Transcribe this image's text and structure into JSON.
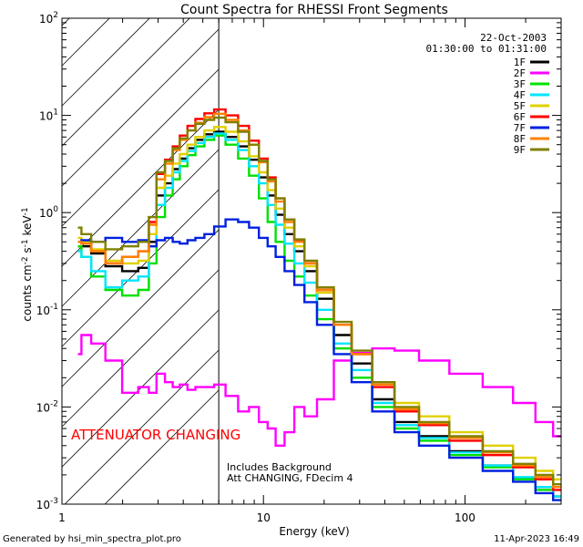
{
  "chart_data": {
    "type": "line",
    "title": "Count Spectra for RHESSI Front Segments",
    "xlabel": "Energy (keV)",
    "ylabel": "counts cm⁻² s⁻¹ keV⁻¹",
    "xscale": "log",
    "yscale": "log",
    "xlim": [
      1,
      300
    ],
    "ylim": [
      0.001,
      100
    ],
    "x_ticks": [
      {
        "value": 1,
        "label": "1"
      },
      {
        "value": 10,
        "label": "10"
      },
      {
        "value": 100,
        "label": "100"
      }
    ],
    "y_ticks": [
      {
        "value": 0.001,
        "base": "10",
        "exp": "-3"
      },
      {
        "value": 0.01,
        "base": "10",
        "exp": "-2"
      },
      {
        "value": 0.1,
        "base": "10",
        "exp": "-1"
      },
      {
        "value": 1,
        "base": "10",
        "exp": "0"
      },
      {
        "value": 10,
        "base": "10",
        "exp": "1"
      },
      {
        "value": 100,
        "base": "10",
        "exp": "2"
      }
    ],
    "date": "22-Oct-2003",
    "time_range": "01:30:00 to 01:31:00",
    "attenuator_label": "ATTENUATOR CHANGING",
    "attenuator_region": {
      "from_kev": 1,
      "to_kev": 6
    },
    "notes": [
      "Includes Background",
      "Att CHANGING, FDecim 4"
    ],
    "series": [
      {
        "name": "1F",
        "color": "#000000",
        "energy": [
          1.2,
          1.3,
          1.5,
          1.8,
          2.2,
          2.6,
          2.8,
          3.1,
          3.4,
          3.7,
          4.0,
          4.4,
          4.8,
          5.4,
          6.0,
          7.0,
          8.0,
          9.0,
          10.0,
          11.0,
          12.0,
          13.5,
          15.0,
          17.0,
          20.0,
          25.0,
          30.0,
          40.0,
          50.0,
          70.0,
          100.0,
          150.0,
          200.0,
          250.0,
          300.0
        ],
        "counts": [
          0.45,
          0.45,
          0.38,
          0.28,
          0.25,
          0.27,
          0.5,
          1.5,
          2.0,
          2.8,
          3.6,
          4.6,
          5.6,
          6.4,
          6.8,
          6.0,
          4.8,
          3.5,
          2.3,
          1.5,
          0.95,
          0.6,
          0.4,
          0.25,
          0.13,
          0.055,
          0.028,
          0.012,
          0.007,
          0.005,
          0.0035,
          0.0025,
          0.0018,
          0.0015,
          0.0012
        ]
      },
      {
        "name": "2F",
        "color": "#ff00ff",
        "energy": [
          1.2,
          1.3,
          1.5,
          1.8,
          2.2,
          2.6,
          2.8,
          3.1,
          3.4,
          3.7,
          4.0,
          4.4,
          4.8,
          5.4,
          6.0,
          7.0,
          8.0,
          9.0,
          10.0,
          11.0,
          12.0,
          13.5,
          15.0,
          17.0,
          20.0,
          25.0,
          30.0,
          40.0,
          50.0,
          70.0,
          100.0,
          150.0,
          200.0,
          250.0,
          300.0
        ],
        "counts": [
          0.035,
          0.055,
          0.045,
          0.03,
          0.014,
          0.016,
          0.014,
          0.022,
          0.018,
          0.016,
          0.017,
          0.015,
          0.016,
          0.016,
          0.017,
          0.013,
          0.009,
          0.01,
          0.007,
          0.006,
          0.004,
          0.0055,
          0.01,
          0.008,
          0.012,
          0.03,
          0.036,
          0.04,
          0.038,
          0.03,
          0.022,
          0.016,
          0.011,
          0.007,
          0.005
        ]
      },
      {
        "name": "3F",
        "color": "#00e000",
        "energy": [
          1.2,
          1.3,
          1.5,
          1.8,
          2.2,
          2.6,
          2.8,
          3.1,
          3.4,
          3.7,
          4.0,
          4.4,
          4.8,
          5.4,
          6.0,
          7.0,
          8.0,
          9.0,
          10.0,
          11.0,
          12.0,
          13.5,
          15.0,
          17.0,
          20.0,
          25.0,
          30.0,
          40.0,
          50.0,
          70.0,
          100.0,
          150.0,
          200.0,
          250.0,
          300.0
        ],
        "counts": [
          0.45,
          0.35,
          0.22,
          0.16,
          0.14,
          0.16,
          0.3,
          0.9,
          1.5,
          2.2,
          3.0,
          3.9,
          4.8,
          5.6,
          6.2,
          5.0,
          3.6,
          2.4,
          1.4,
          0.8,
          0.5,
          0.32,
          0.22,
          0.14,
          0.08,
          0.04,
          0.02,
          0.01,
          0.006,
          0.0045,
          0.0032,
          0.0024,
          0.0018,
          0.0014,
          0.0012
        ]
      },
      {
        "name": "4F",
        "color": "#00e5ff",
        "energy": [
          1.2,
          1.3,
          1.5,
          1.8,
          2.2,
          2.6,
          2.8,
          3.1,
          3.4,
          3.7,
          4.0,
          4.4,
          4.8,
          5.4,
          6.0,
          7.0,
          8.0,
          9.0,
          10.0,
          11.0,
          12.0,
          13.5,
          15.0,
          17.0,
          20.0,
          25.0,
          30.0,
          40.0,
          50.0,
          70.0,
          100.0,
          150.0,
          200.0,
          250.0,
          300.0
        ],
        "counts": [
          0.4,
          0.35,
          0.25,
          0.17,
          0.2,
          0.22,
          0.45,
          1.2,
          1.8,
          2.6,
          3.4,
          4.3,
          5.2,
          6.0,
          6.5,
          5.6,
          4.4,
          3.0,
          2.0,
          1.2,
          0.75,
          0.48,
          0.3,
          0.19,
          0.1,
          0.045,
          0.024,
          0.011,
          0.0065,
          0.0048,
          0.0034,
          0.0025,
          0.0019,
          0.0015,
          0.0012
        ]
      },
      {
        "name": "5F",
        "color": "#e0d000",
        "energy": [
          1.2,
          1.3,
          1.5,
          1.8,
          2.2,
          2.6,
          2.8,
          3.1,
          3.4,
          3.7,
          4.0,
          4.4,
          4.8,
          5.4,
          6.0,
          7.0,
          8.0,
          9.0,
          10.0,
          11.0,
          12.0,
          13.5,
          15.0,
          17.0,
          20.0,
          25.0,
          30.0,
          40.0,
          50.0,
          70.0,
          100.0,
          150.0,
          200.0,
          250.0,
          300.0
        ],
        "counts": [
          0.55,
          0.5,
          0.42,
          0.32,
          0.3,
          0.32,
          0.6,
          1.8,
          2.4,
          3.2,
          4.0,
          5.0,
          6.0,
          7.0,
          7.6,
          6.8,
          5.4,
          3.8,
          2.6,
          1.7,
          1.1,
          0.7,
          0.45,
          0.28,
          0.15,
          0.07,
          0.035,
          0.018,
          0.011,
          0.008,
          0.0055,
          0.004,
          0.003,
          0.0022,
          0.0018
        ]
      },
      {
        "name": "6F",
        "color": "#ff0000",
        "energy": [
          1.2,
          1.3,
          1.5,
          1.8,
          2.2,
          2.6,
          2.8,
          3.1,
          3.4,
          3.7,
          4.0,
          4.4,
          4.8,
          5.4,
          6.0,
          7.0,
          8.0,
          9.0,
          10.0,
          11.0,
          12.0,
          13.5,
          15.0,
          17.0,
          20.0,
          25.0,
          30.0,
          40.0,
          50.0,
          70.0,
          100.0,
          150.0,
          200.0,
          250.0,
          300.0
        ],
        "counts": [
          0.5,
          0.48,
          0.4,
          0.3,
          0.35,
          0.4,
          0.8,
          2.5,
          3.5,
          4.8,
          6.2,
          7.8,
          9.2,
          10.5,
          11.5,
          10.0,
          7.8,
          5.5,
          3.6,
          2.3,
          1.4,
          0.85,
          0.52,
          0.3,
          0.16,
          0.07,
          0.035,
          0.016,
          0.009,
          0.0065,
          0.0045,
          0.0032,
          0.0024,
          0.0018,
          0.0014
        ]
      },
      {
        "name": "7F",
        "color": "#0020e0",
        "energy": [
          1.2,
          1.3,
          1.5,
          1.8,
          2.2,
          2.6,
          2.8,
          3.1,
          3.4,
          3.7,
          4.0,
          4.4,
          4.8,
          5.4,
          6.0,
          7.0,
          8.0,
          9.0,
          10.0,
          11.0,
          12.0,
          13.5,
          15.0,
          17.0,
          20.0,
          25.0,
          30.0,
          40.0,
          50.0,
          70.0,
          100.0,
          150.0,
          200.0,
          250.0,
          300.0
        ],
        "counts": [
          0.5,
          0.52,
          0.5,
          0.55,
          0.5,
          0.52,
          0.45,
          0.52,
          0.55,
          0.5,
          0.48,
          0.52,
          0.55,
          0.6,
          0.72,
          0.85,
          0.8,
          0.7,
          0.55,
          0.45,
          0.35,
          0.25,
          0.18,
          0.12,
          0.07,
          0.035,
          0.018,
          0.009,
          0.0055,
          0.004,
          0.003,
          0.0022,
          0.0017,
          0.0013,
          0.0011
        ]
      },
      {
        "name": "8F",
        "color": "#ff8000",
        "energy": [
          1.2,
          1.3,
          1.5,
          1.8,
          2.2,
          2.6,
          2.8,
          3.1,
          3.4,
          3.7,
          4.0,
          4.4,
          4.8,
          5.4,
          6.0,
          7.0,
          8.0,
          9.0,
          10.0,
          11.0,
          12.0,
          13.5,
          15.0,
          17.0,
          20.0,
          25.0,
          30.0,
          40.0,
          50.0,
          70.0,
          100.0,
          150.0,
          200.0,
          250.0,
          300.0
        ],
        "counts": [
          0.5,
          0.48,
          0.4,
          0.3,
          0.35,
          0.4,
          0.75,
          2.2,
          3.2,
          4.4,
          5.6,
          7.0,
          8.4,
          9.6,
          10.4,
          9.0,
          7.0,
          5.0,
          3.3,
          2.1,
          1.3,
          0.8,
          0.5,
          0.3,
          0.16,
          0.07,
          0.035,
          0.017,
          0.0095,
          0.0068,
          0.0048,
          0.0034,
          0.0025,
          0.0019,
          0.0015
        ]
      },
      {
        "name": "9F",
        "color": "#808000",
        "energy": [
          1.2,
          1.3,
          1.5,
          1.8,
          2.2,
          2.6,
          2.8,
          3.1,
          3.4,
          3.7,
          4.0,
          4.4,
          4.8,
          5.4,
          6.0,
          7.0,
          8.0,
          9.0,
          10.0,
          11.0,
          12.0,
          13.5,
          15.0,
          17.0,
          20.0,
          25.0,
          30.0,
          40.0,
          50.0,
          70.0,
          100.0,
          150.0,
          200.0,
          250.0,
          300.0
        ],
        "counts": [
          0.7,
          0.6,
          0.5,
          0.42,
          0.45,
          0.5,
          0.9,
          2.6,
          3.4,
          4.6,
          5.8,
          7.0,
          8.2,
          9.0,
          9.5,
          8.5,
          6.8,
          5.0,
          3.4,
          2.2,
          1.4,
          0.85,
          0.53,
          0.32,
          0.17,
          0.075,
          0.038,
          0.018,
          0.01,
          0.007,
          0.005,
          0.0035,
          0.0026,
          0.002,
          0.0016
        ]
      }
    ]
  },
  "footer": {
    "generated_by": "Generated by hsi_min_spectra_plot.pro",
    "timestamp": "11-Apr-2023 16:49"
  }
}
